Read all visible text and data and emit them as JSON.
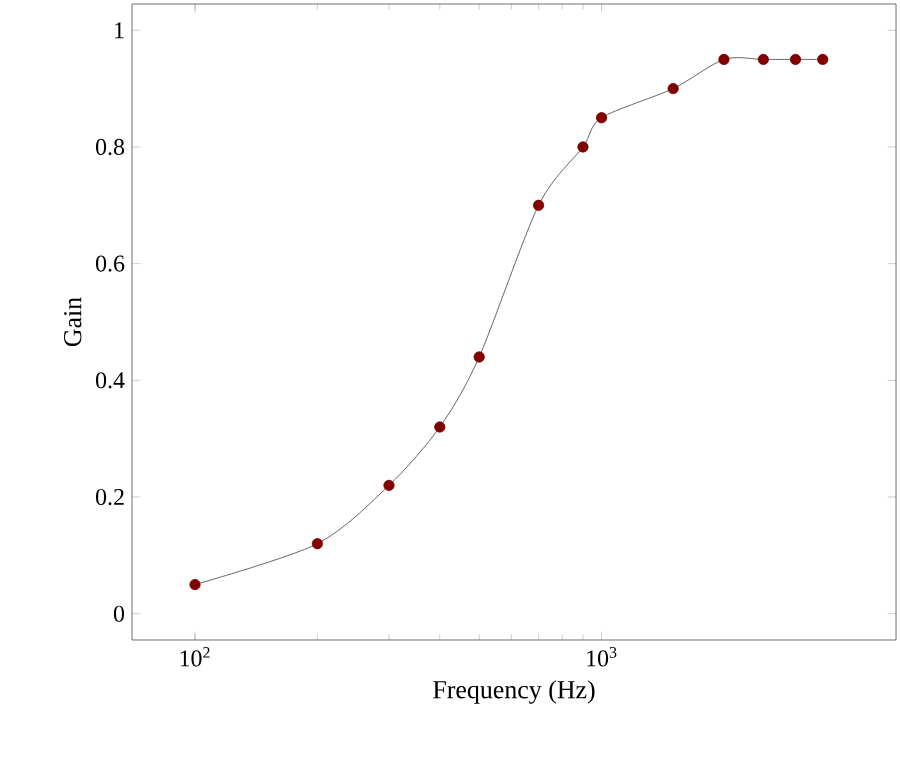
{
  "chart_data": {
    "type": "line",
    "xlabel": "Frequency (Hz)",
    "ylabel": "Gain",
    "log": "x",
    "marker": "circle",
    "line_style": "solid",
    "grid": false,
    "x": [
      100,
      200,
      300,
      400,
      500,
      700,
      900,
      1000,
      1500,
      2000,
      2500,
      3000,
      3500
    ],
    "series": [
      {
        "color": "#800000",
        "values": [
          0.05,
          0.12,
          0.22,
          0.32,
          0.44,
          0.7,
          0.8,
          0.85,
          0.9,
          0.95,
          0.95,
          0.95,
          0.95
        ]
      }
    ],
    "xlim": [
      70,
      5300
    ],
    "ylim": [
      -0.045,
      1.045
    ],
    "xticks": [
      {
        "value": 100,
        "label": "10$^{2}$"
      },
      {
        "value": 1000,
        "label": "10$^{3}$"
      }
    ],
    "yticks": [
      0,
      0.2,
      0.4,
      0.6,
      0.8,
      1
    ]
  }
}
